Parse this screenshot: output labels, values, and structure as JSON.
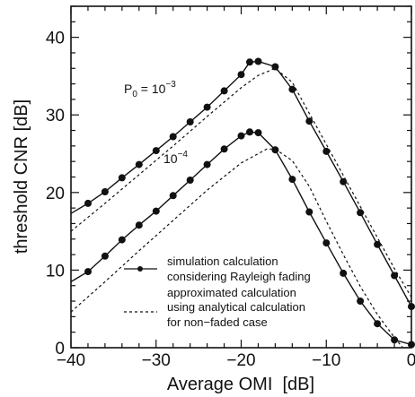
{
  "chart_data": {
    "type": "line",
    "xlabel": "Average OMI  [dB]",
    "ylabel": "threshold CNR [dB]",
    "xlim": [
      -40,
      0
    ],
    "ylim": [
      0,
      44
    ],
    "x_ticks": [
      -40,
      -30,
      -20,
      -10,
      0
    ],
    "y_ticks": [
      0,
      10,
      20,
      30,
      40
    ],
    "x_tick_labels": [
      "−40",
      "−30",
      "−20",
      "−10",
      "0"
    ],
    "y_tick_labels": [
      "0",
      "10",
      "20",
      "30",
      "40"
    ],
    "grid": false,
    "legend_position": "lower-center",
    "series": [
      {
        "group": "P0 = 1e-3",
        "style": "solid-markers",
        "x": [
          -40,
          -38,
          -36,
          -34,
          -32,
          -30,
          -28,
          -26,
          -24,
          -22,
          -20,
          -19,
          -18,
          -16,
          -14,
          -12,
          -10,
          -8,
          -6,
          -4,
          -2,
          0
        ],
        "y": [
          17.3,
          18.6,
          20.1,
          21.9,
          23.6,
          25.4,
          27.2,
          29.1,
          31.0,
          33.1,
          35.2,
          36.8,
          36.9,
          36.2,
          33.3,
          29.2,
          25.3,
          21.4,
          17.4,
          13.3,
          9.3,
          5.3
        ]
      },
      {
        "group": "P0 = 1e-3",
        "style": "dashed",
        "x": [
          -40,
          -36,
          -32,
          -28,
          -24,
          -20,
          -18,
          -16,
          -14,
          -12,
          -10,
          -8,
          -6,
          -4,
          -2,
          0
        ],
        "y": [
          15.0,
          18.6,
          22.3,
          26.0,
          29.8,
          33.5,
          35.1,
          36.0,
          34.2,
          30.2,
          26.2,
          22.2,
          18.2,
          14.2,
          10.2,
          6.5
        ]
      },
      {
        "group": "P0 = 1e-4",
        "style": "solid-markers",
        "x": [
          -40,
          -38,
          -36,
          -34,
          -32,
          -30,
          -28,
          -26,
          -24,
          -22,
          -20,
          -19,
          -18,
          -16,
          -14,
          -12,
          -10,
          -8,
          -6,
          -4,
          -2,
          0
        ],
        "y": [
          8.5,
          9.8,
          11.8,
          13.9,
          15.8,
          17.6,
          19.6,
          21.6,
          23.6,
          25.6,
          27.3,
          27.8,
          27.7,
          25.5,
          21.7,
          17.5,
          13.5,
          9.6,
          6.0,
          3.1,
          1.0,
          0.4
        ]
      },
      {
        "group": "P0 = 1e-4",
        "style": "dashed",
        "x": [
          -40,
          -36,
          -32,
          -28,
          -24,
          -20,
          -17,
          -16,
          -14,
          -12,
          -10,
          -8,
          -6,
          -4,
          -2,
          -1
        ],
        "y": [
          4.6,
          8.5,
          12.5,
          16.4,
          20.3,
          23.8,
          25.6,
          25.6,
          24.1,
          20.8,
          16.3,
          12.0,
          7.9,
          4.3,
          1.3,
          0
        ]
      }
    ],
    "annotations": {
      "p0_prefix": "P",
      "p0_sub": "0",
      "p0_eq": " = 10",
      "p0_exp": "−3",
      "p4_base": "10",
      "p4_exp": "−4"
    },
    "legend": {
      "entry1_line1": "simulation calculation",
      "entry1_line2": "considering Rayleigh fading",
      "entry2_line1": "approximated calculation",
      "entry2_line2": "using analytical calculation",
      "entry2_line3": "for non−faded case"
    }
  }
}
